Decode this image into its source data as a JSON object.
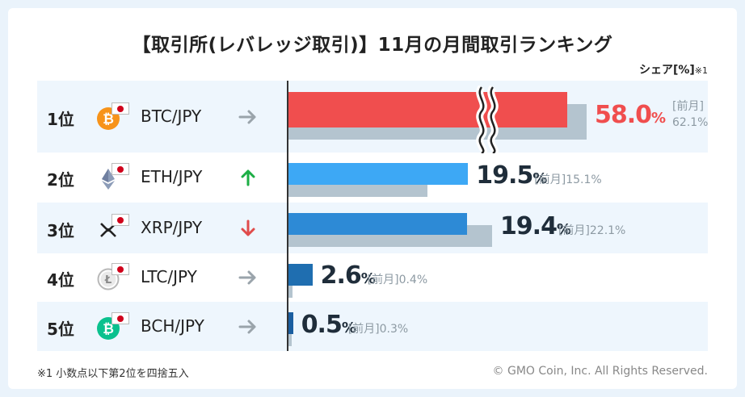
{
  "title": "【取引所(レバレッジ取引)】11月の月間取引ランキング",
  "unit_label": "シェア[%]",
  "unit_note": "※1",
  "footnote": "※1 小数点以下第2位を四捨五入",
  "copyright": "© GMO Coin, Inc. All Rights Reserved.",
  "prev_label": "[前月]",
  "percent_sign": "%",
  "colors": {
    "btc_bar": "#f04e4e",
    "eth_bar": "#3da8f5",
    "xrp_bar": "#2d8ad6",
    "ltc_bar": "#1f6eb0",
    "bch_bar": "#1a5ea0",
    "prev_bar": "#b4c4cf",
    "up": "#1cae45",
    "down": "#e04b4b",
    "flat": "#9aa4ab"
  },
  "chart_data": {
    "type": "bar",
    "orientation": "horizontal",
    "axis_break": true,
    "categories": [
      "BTC/JPY",
      "ETH/JPY",
      "XRP/JPY",
      "LTC/JPY",
      "BCH/JPY"
    ],
    "series": [
      {
        "name": "",
        "values": [
          58.0,
          19.5,
          19.4,
          2.6,
          0.5
        ]
      },
      {
        "name": "前月",
        "values": [
          62.1,
          15.1,
          22.1,
          0.4,
          0.3
        ]
      }
    ],
    "rows": [
      {
        "rank": "1位",
        "pair": "BTC/JPY",
        "coin": "btc-icon",
        "trend": "flat",
        "value": "58.0",
        "prev": "62.1%"
      },
      {
        "rank": "2位",
        "pair": "ETH/JPY",
        "coin": "eth-icon",
        "trend": "up",
        "value": "19.5",
        "prev": "15.1%"
      },
      {
        "rank": "3位",
        "pair": "XRP/JPY",
        "coin": "xrp-icon",
        "trend": "down",
        "value": "19.4",
        "prev": "22.1%"
      },
      {
        "rank": "4位",
        "pair": "LTC/JPY",
        "coin": "ltc-icon",
        "trend": "flat",
        "value": "2.6",
        "prev": "0.4%"
      },
      {
        "rank": "5位",
        "pair": "BCH/JPY",
        "coin": "bch-icon",
        "trend": "flat",
        "value": "0.5",
        "prev": "0.3%"
      }
    ]
  }
}
